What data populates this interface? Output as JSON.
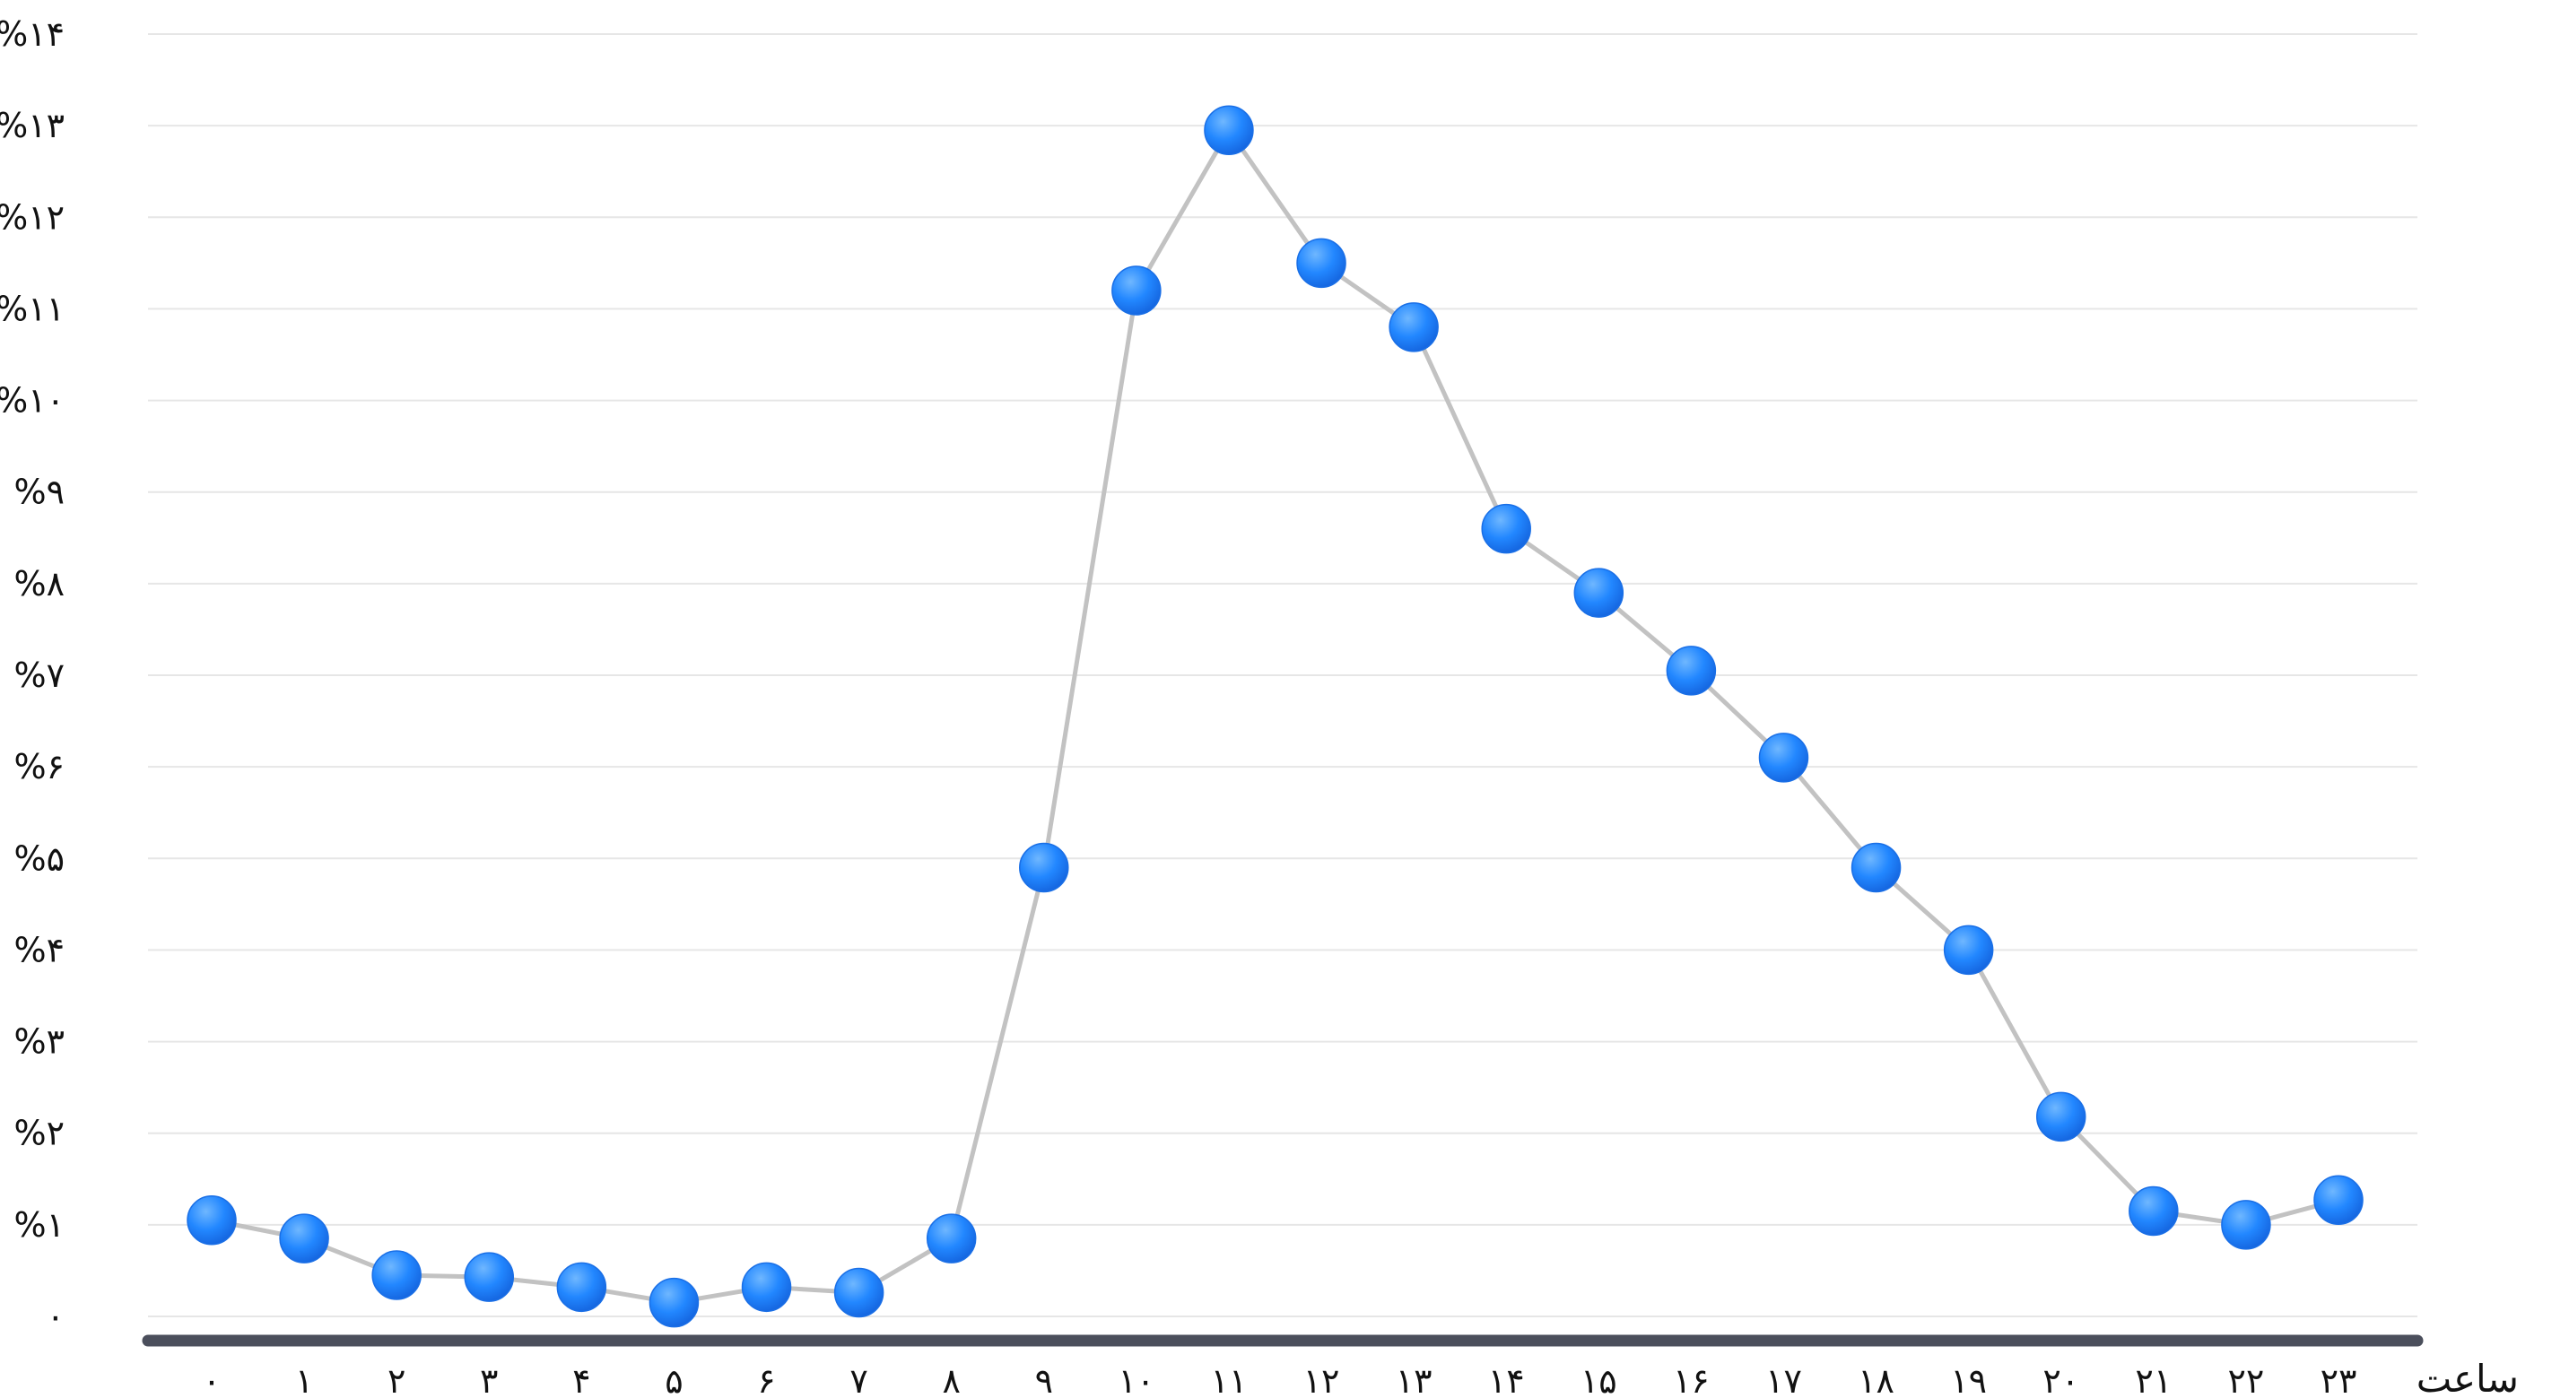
{
  "chart_data": {
    "type": "line",
    "xlabel": "ساعت",
    "ylabel": "",
    "ylim": [
      0,
      14
    ],
    "grid": true,
    "colors": {
      "line": "#c2c2c2",
      "marker": "#2287ff",
      "marker_highlight": "#6fb7ff",
      "grid": "#e6e6e6",
      "axis": "#4b4f5c"
    },
    "x": [
      "۰",
      "۱",
      "۲",
      "۳",
      "۴",
      "۵",
      "۶",
      "۷",
      "۸",
      "۹",
      "۱۰",
      "۱۱",
      "۱۲",
      "۱۳",
      "۱۴",
      "۱۵",
      "۱۶",
      "۱۷",
      "۱۸",
      "۱۹",
      "۲۰",
      "۲۱",
      "۲۲",
      "۲۳"
    ],
    "y_ticks": [
      "۰",
      "%۱",
      "%۲",
      "%۳",
      "%۴",
      "%۵",
      "%۶",
      "%۷",
      "%۸",
      "%۹",
      "%۱۰",
      "%۱۱",
      "%۱۲",
      "%۱۳",
      "%۱۴"
    ],
    "series": [
      {
        "values": [
          1.05,
          0.85,
          0.45,
          0.43,
          0.32,
          0.15,
          0.32,
          0.26,
          0.85,
          4.9,
          11.2,
          12.95,
          11.5,
          10.8,
          8.6,
          7.9,
          7.05,
          6.1,
          4.9,
          4.0,
          2.18,
          1.15,
          1.0,
          1.27
        ]
      }
    ]
  }
}
